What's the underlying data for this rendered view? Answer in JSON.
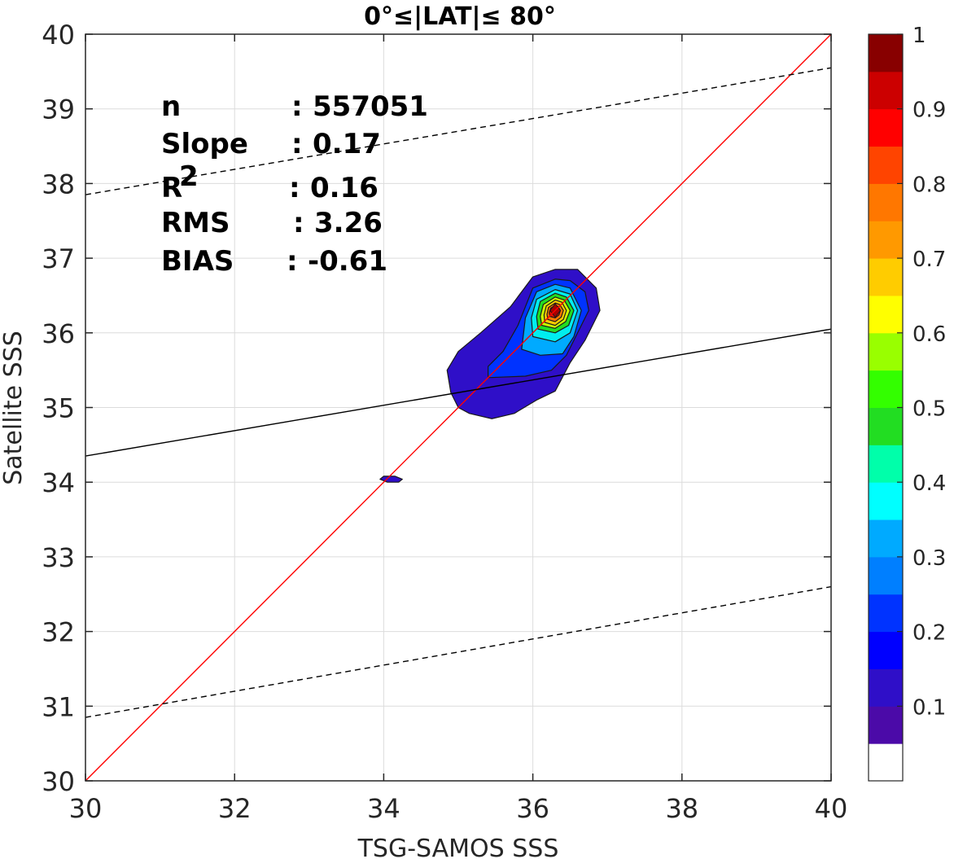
{
  "chart_data": {
    "type": "contour",
    "title": "0°≤|LAT|≤ 80°",
    "xlabel": "TSG-SAMOS SSS",
    "ylabel": "Satellite SSS",
    "xlim": [
      30,
      40
    ],
    "ylim": [
      30,
      40
    ],
    "xticks": [
      "30",
      "32",
      "34",
      "36",
      "38",
      "40"
    ],
    "yticks": [
      "30",
      "31",
      "32",
      "33",
      "34",
      "35",
      "36",
      "37",
      "38",
      "39",
      "40"
    ],
    "grid": true,
    "stats": [
      {
        "name": "n",
        "sep": ": ",
        "value": "557051"
      },
      {
        "name": "Slope",
        "sep": ": ",
        "value": "0.17"
      },
      {
        "name": "R",
        "sup": "2",
        "sep": ": ",
        "value": "0.16"
      },
      {
        "name": "RMS",
        "sep": ": ",
        "value": "3.26"
      },
      {
        "name": "BIAS",
        "sep": ": ",
        "value": "-0.61"
      }
    ],
    "lines": {
      "one_to_one": {
        "x": [
          30,
          40
        ],
        "y": [
          30,
          40
        ],
        "color": "#ff0000"
      },
      "fit": {
        "x": [
          30,
          40
        ],
        "y": [
          34.35,
          36.05
        ],
        "color": "#000000"
      },
      "fit_upper": {
        "x": [
          30,
          40
        ],
        "y": [
          37.85,
          39.55
        ],
        "color": "#000000",
        "dash": true
      },
      "fit_lower": {
        "x": [
          30,
          40
        ],
        "y": [
          30.85,
          32.6
        ],
        "color": "#000000",
        "dash": true
      }
    },
    "density_peak": {
      "x": 36.3,
      "y": 36.3,
      "value": 1
    },
    "contours": [
      {
        "level": 0.05,
        "color": "#2f0fc8",
        "points": [
          [
            35.0,
            35.0
          ],
          [
            35.15,
            34.92
          ],
          [
            35.45,
            34.85
          ],
          [
            35.75,
            34.92
          ],
          [
            36.05,
            35.1
          ],
          [
            36.3,
            35.22
          ],
          [
            36.5,
            35.6
          ],
          [
            36.7,
            35.9
          ],
          [
            36.9,
            36.3
          ],
          [
            36.85,
            36.6
          ],
          [
            36.6,
            36.85
          ],
          [
            36.3,
            36.85
          ],
          [
            36.0,
            36.75
          ],
          [
            35.7,
            36.35
          ],
          [
            35.3,
            36.0
          ],
          [
            35.0,
            35.75
          ],
          [
            34.85,
            35.5
          ],
          [
            34.9,
            35.2
          ]
        ]
      },
      {
        "level": 0.05,
        "color": "#2f0fc8",
        "points": [
          [
            33.95,
            34.04
          ],
          [
            34.05,
            34.0
          ],
          [
            34.2,
            34.0
          ],
          [
            34.25,
            34.04
          ],
          [
            34.15,
            34.08
          ],
          [
            34.0,
            34.08
          ]
        ]
      },
      {
        "level": 0.15,
        "color": "#0033ff",
        "points": [
          [
            35.4,
            35.4
          ],
          [
            35.9,
            35.42
          ],
          [
            36.25,
            35.5
          ],
          [
            36.45,
            35.7
          ],
          [
            36.6,
            36.0
          ],
          [
            36.75,
            36.3
          ],
          [
            36.7,
            36.55
          ],
          [
            36.5,
            36.7
          ],
          [
            36.3,
            36.72
          ],
          [
            36.0,
            36.6
          ],
          [
            35.8,
            36.1
          ],
          [
            35.6,
            35.75
          ],
          [
            35.4,
            35.55
          ]
        ]
      },
      {
        "level": 0.3,
        "color": "#00aaff",
        "points": [
          [
            35.85,
            35.78
          ],
          [
            36.1,
            35.7
          ],
          [
            36.4,
            35.72
          ],
          [
            36.55,
            35.95
          ],
          [
            36.65,
            36.3
          ],
          [
            36.5,
            36.6
          ],
          [
            36.3,
            36.65
          ],
          [
            36.05,
            36.55
          ],
          [
            35.9,
            36.2
          ]
        ]
      },
      {
        "level": 0.4,
        "color": "#00eeee",
        "points": [
          [
            36.0,
            35.95
          ],
          [
            36.3,
            35.88
          ],
          [
            36.5,
            36.0
          ],
          [
            36.6,
            36.3
          ],
          [
            36.5,
            36.52
          ],
          [
            36.3,
            36.58
          ],
          [
            36.05,
            36.45
          ],
          [
            35.98,
            36.2
          ]
        ]
      },
      {
        "level": 0.5,
        "color": "#22dd22",
        "points": [
          [
            36.07,
            36.05
          ],
          [
            36.3,
            36.0
          ],
          [
            36.48,
            36.1
          ],
          [
            36.55,
            36.3
          ],
          [
            36.45,
            36.48
          ],
          [
            36.3,
            36.53
          ],
          [
            36.1,
            36.42
          ],
          [
            36.05,
            36.22
          ]
        ]
      },
      {
        "level": 0.6,
        "color": "#ccff00",
        "points": [
          [
            36.12,
            36.1
          ],
          [
            36.3,
            36.06
          ],
          [
            36.44,
            36.15
          ],
          [
            36.5,
            36.3
          ],
          [
            36.42,
            36.44
          ],
          [
            36.3,
            36.48
          ],
          [
            36.14,
            36.38
          ],
          [
            36.1,
            36.22
          ]
        ]
      },
      {
        "level": 0.7,
        "color": "#ffcc00",
        "points": [
          [
            36.16,
            36.14
          ],
          [
            36.3,
            36.1
          ],
          [
            36.41,
            36.18
          ],
          [
            36.45,
            36.3
          ],
          [
            36.39,
            36.41
          ],
          [
            36.3,
            36.44
          ],
          [
            36.18,
            36.36
          ],
          [
            36.15,
            36.24
          ]
        ]
      },
      {
        "level": 0.8,
        "color": "#ff7700",
        "points": [
          [
            36.2,
            36.18
          ],
          [
            36.3,
            36.15
          ],
          [
            36.38,
            36.21
          ],
          [
            36.41,
            36.3
          ],
          [
            36.36,
            36.38
          ],
          [
            36.3,
            36.4
          ],
          [
            36.21,
            36.34
          ],
          [
            36.19,
            36.25
          ]
        ]
      },
      {
        "level": 0.9,
        "color": "#ee1100",
        "points": [
          [
            36.23,
            36.22
          ],
          [
            36.3,
            36.2
          ],
          [
            36.35,
            36.24
          ],
          [
            36.37,
            36.3
          ],
          [
            36.34,
            36.35
          ],
          [
            36.3,
            36.37
          ],
          [
            36.24,
            36.33
          ],
          [
            36.22,
            36.27
          ]
        ]
      }
    ],
    "colorbar": {
      "range": [
        0,
        1
      ],
      "ticks": [
        "0.1",
        "0.2",
        "0.3",
        "0.4",
        "0.5",
        "0.6",
        "0.7",
        "0.8",
        "0.9",
        "1"
      ],
      "colors": [
        "#ffffff",
        "#4b0aa8",
        "#2f0fc8",
        "#0000ff",
        "#0033ff",
        "#007fff",
        "#00aaff",
        "#00ffff",
        "#00ffaa",
        "#22dd22",
        "#33ff00",
        "#99ff00",
        "#ffff00",
        "#ffcc00",
        "#ff9900",
        "#ff7700",
        "#ff4400",
        "#ff0000",
        "#cc0000",
        "#880000"
      ]
    }
  }
}
